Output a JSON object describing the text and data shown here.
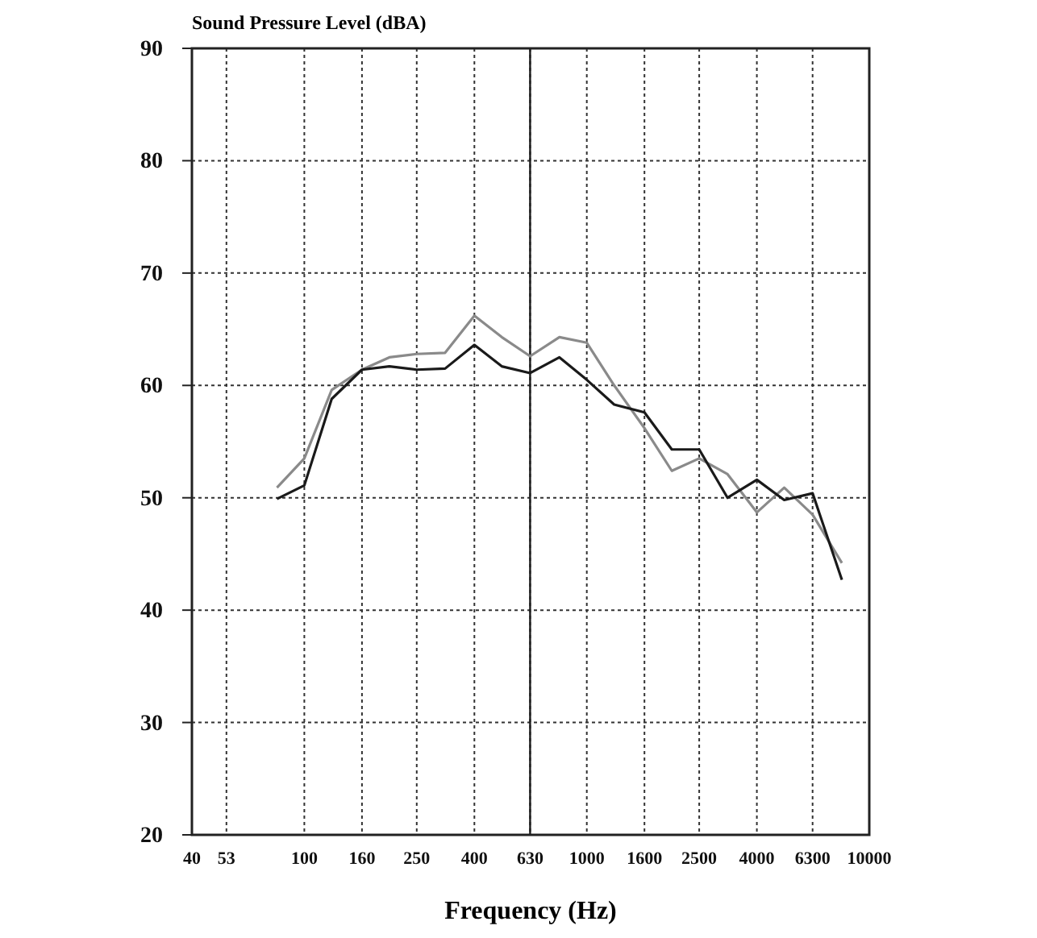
{
  "chart_data": {
    "type": "line",
    "title": "Sound Pressure Level (dBA)",
    "xlabel": "Frequency (Hz)",
    "log": "x",
    "xlim": [
      40,
      10000
    ],
    "xticks": [
      40,
      53,
      100,
      160,
      250,
      400,
      630,
      1000,
      1600,
      2500,
      4000,
      6300,
      10000
    ],
    "ylim": [
      20,
      90
    ],
    "yticks": [
      20,
      30,
      40,
      50,
      60,
      70,
      80,
      90
    ],
    "grid": true,
    "line_style": "solid",
    "ref_lines": [
      {
        "axis": "x",
        "value": 630,
        "color": "#1a1a1a",
        "line_style": "solid"
      }
    ],
    "x": [
      80,
      100,
      125,
      160,
      200,
      250,
      315,
      400,
      500,
      630,
      800,
      1000,
      1250,
      1600,
      2000,
      2500,
      3150,
      4000,
      5000,
      6300,
      8000
    ],
    "series": [
      {
        "color": "#8a8a8a",
        "values": [
          50.9,
          53.5,
          59.6,
          61.4,
          62.5,
          62.8,
          62.9,
          66.2,
          64.3,
          62.6,
          64.3,
          63.8,
          60,
          56.2,
          52.4,
          53.5,
          52.1,
          48.7,
          50.9,
          48.5,
          44.2
        ]
      },
      {
        "color": "#1a1a1a",
        "values": [
          49.9,
          51.1,
          58.8,
          61.4,
          61.7,
          61.4,
          61.5,
          63.6,
          61.7,
          61.1,
          62.5,
          60.5,
          58.3,
          57.6,
          54.3,
          54.3,
          50,
          51.6,
          49.8,
          50.4,
          42.7
        ]
      }
    ]
  }
}
